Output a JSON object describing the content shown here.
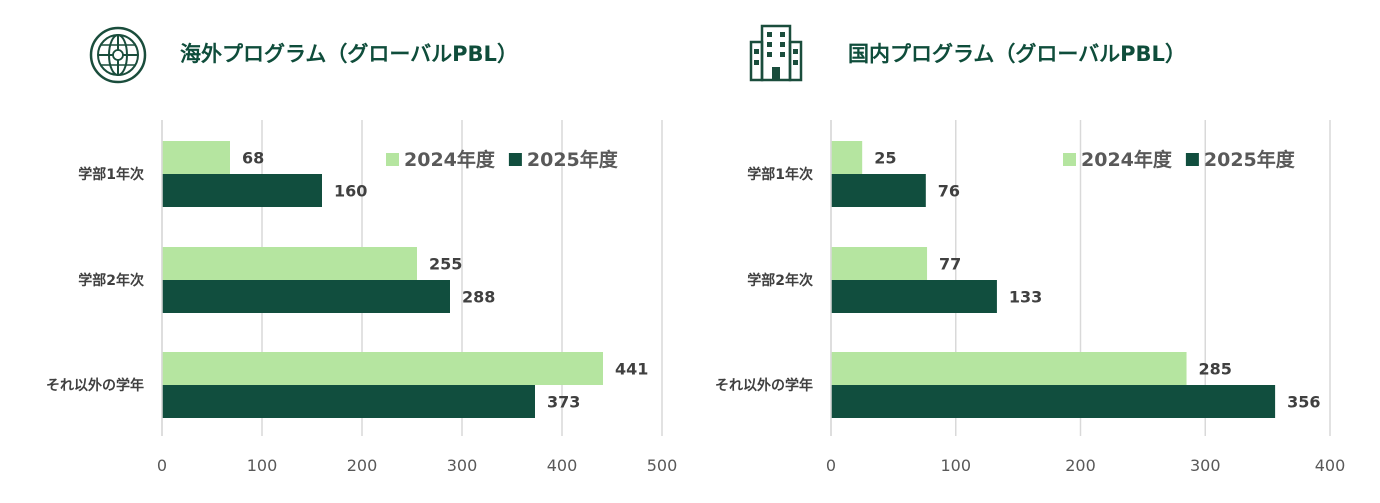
{
  "chart_data": [
    {
      "type": "bar",
      "orientation": "horizontal",
      "title": "海外プログラム（グローバルPBL）",
      "icon": "globe-icon",
      "categories": [
        "学部1年次",
        "学部2年次",
        "それ以外の学年"
      ],
      "series": [
        {
          "name": "2024年度",
          "values": [
            68,
            255,
            441
          ],
          "color": "#b5e5a0"
        },
        {
          "name": "2025年度",
          "values": [
            160,
            288,
            373
          ],
          "color": "#114e3e"
        }
      ],
      "xlim": [
        0,
        500
      ],
      "ticks": [
        "0",
        "100",
        "200",
        "300",
        "400",
        "500"
      ],
      "grid": true,
      "legend": "top-right"
    },
    {
      "type": "bar",
      "orientation": "horizontal",
      "title": "国内プログラム（グローバルPBL）",
      "icon": "office-building-icon",
      "categories": [
        "学部1年次",
        "学部2年次",
        "それ以外の学年"
      ],
      "series": [
        {
          "name": "2024年度",
          "values": [
            25,
            77,
            285
          ],
          "color": "#b5e5a0"
        },
        {
          "name": "2025年度",
          "values": [
            76,
            133,
            356
          ],
          "color": "#114e3e"
        }
      ],
      "xlim": [
        0,
        400
      ],
      "ticks": [
        "0",
        "100",
        "200",
        "300",
        "400"
      ],
      "grid": true,
      "legend": "top-right"
    }
  ]
}
